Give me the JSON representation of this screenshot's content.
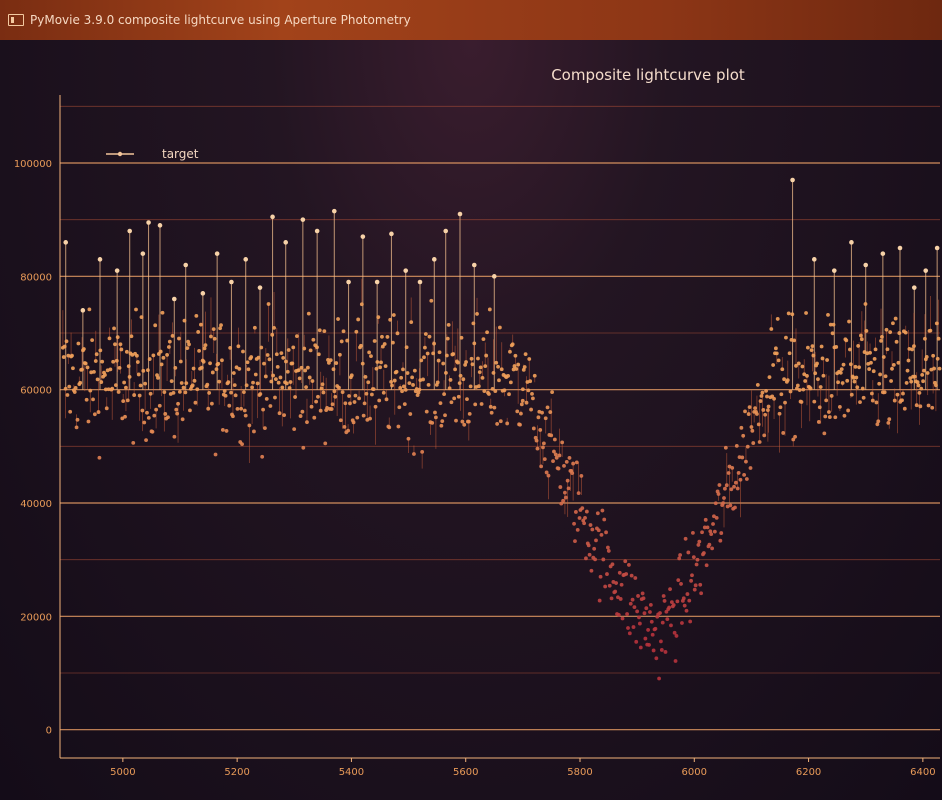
{
  "window": {
    "title": "PyMovie 3.9.0 composite lightcurve using Aperture Photometry"
  },
  "chart_data": {
    "type": "scatter",
    "title": "Composite lightcurve plot",
    "xlabel": "",
    "ylabel": "",
    "xlim": [
      4890,
      6430
    ],
    "ylim": [
      -5000,
      112000
    ],
    "x_ticks": [
      5000,
      5200,
      5400,
      5600,
      5800,
      6000,
      6200,
      6400
    ],
    "y_ticks": [
      0,
      20000,
      40000,
      60000,
      80000,
      100000
    ],
    "x_tick_labels": [
      "5000",
      "5200",
      "5400",
      "5600",
      "5800",
      "6000",
      "6200",
      "6400"
    ],
    "y_tick_labels": [
      "0",
      "20000",
      "40000",
      "60000",
      "80000",
      "100000"
    ],
    "grid": true,
    "legend": {
      "position": "top-left",
      "entries": [
        "target"
      ]
    },
    "series": [
      {
        "name": "target",
        "color": "#f0a560",
        "baseline_segments": [
          {
            "x_start": 4895,
            "x_end": 5700,
            "mean": 62000,
            "scatter": 9000
          },
          {
            "x_start": 6130,
            "x_end": 6430,
            "mean": 62000,
            "scatter": 9000
          }
        ],
        "dip": {
          "x_start": 5700,
          "x_min": 5935,
          "x_end": 6130,
          "min_value": 17000
        },
        "spikes": [
          {
            "x": 4900,
            "y": 86000
          },
          {
            "x": 4930,
            "y": 74000
          },
          {
            "x": 4960,
            "y": 83000
          },
          {
            "x": 4990,
            "y": 81000
          },
          {
            "x": 5012,
            "y": 88000
          },
          {
            "x": 5035,
            "y": 84000
          },
          {
            "x": 5045,
            "y": 89500
          },
          {
            "x": 5065,
            "y": 89000
          },
          {
            "x": 5090,
            "y": 76000
          },
          {
            "x": 5110,
            "y": 82000
          },
          {
            "x": 5140,
            "y": 77000
          },
          {
            "x": 5165,
            "y": 84000
          },
          {
            "x": 5190,
            "y": 79000
          },
          {
            "x": 5215,
            "y": 83000
          },
          {
            "x": 5240,
            "y": 78000
          },
          {
            "x": 5262,
            "y": 90500
          },
          {
            "x": 5285,
            "y": 86000
          },
          {
            "x": 5315,
            "y": 90000
          },
          {
            "x": 5340,
            "y": 88000
          },
          {
            "x": 5370,
            "y": 91500
          },
          {
            "x": 5395,
            "y": 79000
          },
          {
            "x": 5420,
            "y": 87000
          },
          {
            "x": 5445,
            "y": 79000
          },
          {
            "x": 5470,
            "y": 87500
          },
          {
            "x": 5495,
            "y": 81000
          },
          {
            "x": 5520,
            "y": 79000
          },
          {
            "x": 5545,
            "y": 83000
          },
          {
            "x": 5565,
            "y": 88000
          },
          {
            "x": 5590,
            "y": 91000
          },
          {
            "x": 5615,
            "y": 82000
          },
          {
            "x": 5650,
            "y": 80000
          },
          {
            "x": 6172,
            "y": 97000
          },
          {
            "x": 6210,
            "y": 83000
          },
          {
            "x": 6245,
            "y": 81000
          },
          {
            "x": 6275,
            "y": 86000
          },
          {
            "x": 6300,
            "y": 82000
          },
          {
            "x": 6330,
            "y": 84000
          },
          {
            "x": 6360,
            "y": 85000
          },
          {
            "x": 6385,
            "y": 78000
          },
          {
            "x": 6405,
            "y": 81000
          },
          {
            "x": 6425,
            "y": 85000
          }
        ]
      }
    ]
  }
}
